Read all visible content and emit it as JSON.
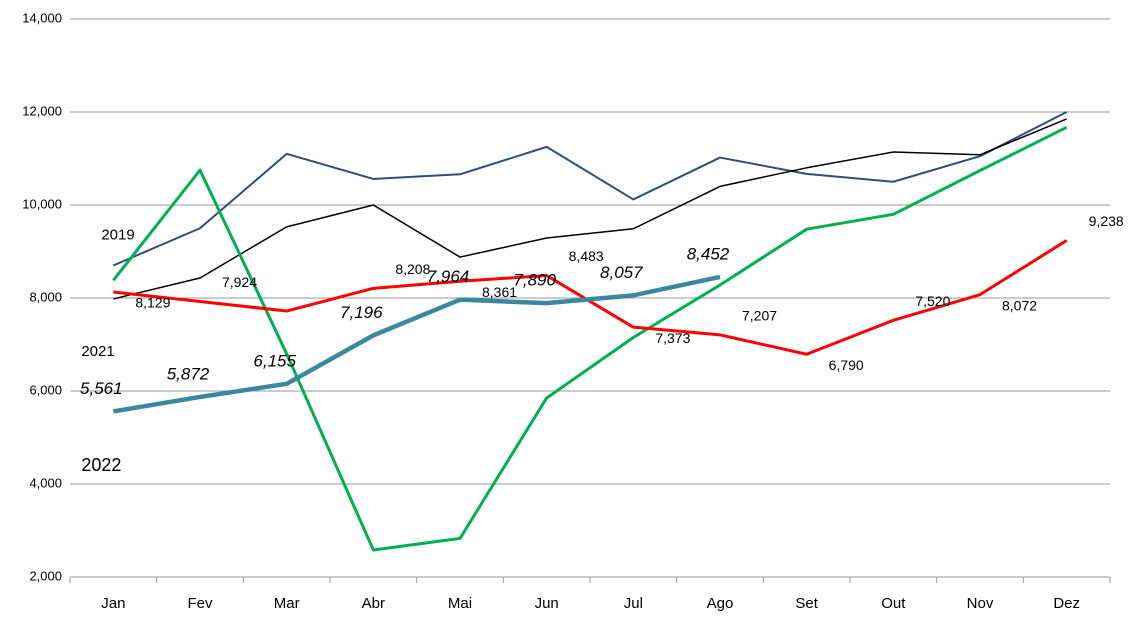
{
  "chart_data": {
    "type": "line",
    "categories": [
      "Jan",
      "Fev",
      "Mar",
      "Abr",
      "Mai",
      "Jun",
      "Jul",
      "Ago",
      "Set",
      "Out",
      "Nov",
      "Dez"
    ],
    "series": [
      {
        "name": "2019",
        "color": "#2e4d7b",
        "width": 2,
        "values": [
          8700,
          9500,
          11100,
          10560,
          10660,
          11250,
          10120,
          11020,
          10670,
          10500,
          11050,
          12000
        ]
      },
      {
        "color": "#000000",
        "width": 1.5,
        "values": [
          7980,
          8430,
          9530,
          10000,
          8880,
          9290,
          9490,
          10400,
          10800,
          11140,
          11080,
          11850
        ]
      },
      {
        "color": "#00b050",
        "width": 3,
        "values": [
          8380,
          10750,
          6800,
          2580,
          2830,
          5850,
          7150,
          8280,
          9480,
          9800,
          10740,
          11670
        ]
      },
      {
        "name": "2021",
        "color": "#ff0000",
        "width": 3,
        "values": [
          8129,
          7924,
          7720,
          8208,
          8361,
          8483,
          7373,
          7207,
          6790,
          7520,
          8072,
          9238
        ],
        "value_labels": [
          "8,129",
          "7,924",
          null,
          "8,208",
          "8,361",
          "8,483",
          "7,373",
          "7,207",
          "6,790",
          "7,520",
          "8,072",
          "9,238"
        ]
      },
      {
        "name": "2022",
        "color": "#3a88a0",
        "width": 4.5,
        "values": [
          5561,
          5872,
          6155,
          7196,
          7964,
          7890,
          8057,
          8452,
          null,
          null,
          null,
          null
        ],
        "value_labels": [
          "5,561",
          "5,872",
          "6,155",
          "7,196",
          "7,964",
          "7,890",
          "8,057",
          "8,452",
          null,
          null,
          null,
          null
        ]
      }
    ],
    "ylim": [
      2000,
      14000
    ],
    "yticks": [
      {
        "value": 2000,
        "label": "2,000"
      },
      {
        "value": 4000,
        "label": "4,000"
      },
      {
        "value": 6000,
        "label": "6,000"
      },
      {
        "value": 8000,
        "label": "8,000"
      },
      {
        "value": 10000,
        "label": "10,000"
      },
      {
        "value": 12000,
        "label": "12,000"
      },
      {
        "value": 14000,
        "label": "14,000"
      }
    ],
    "grid": true
  }
}
